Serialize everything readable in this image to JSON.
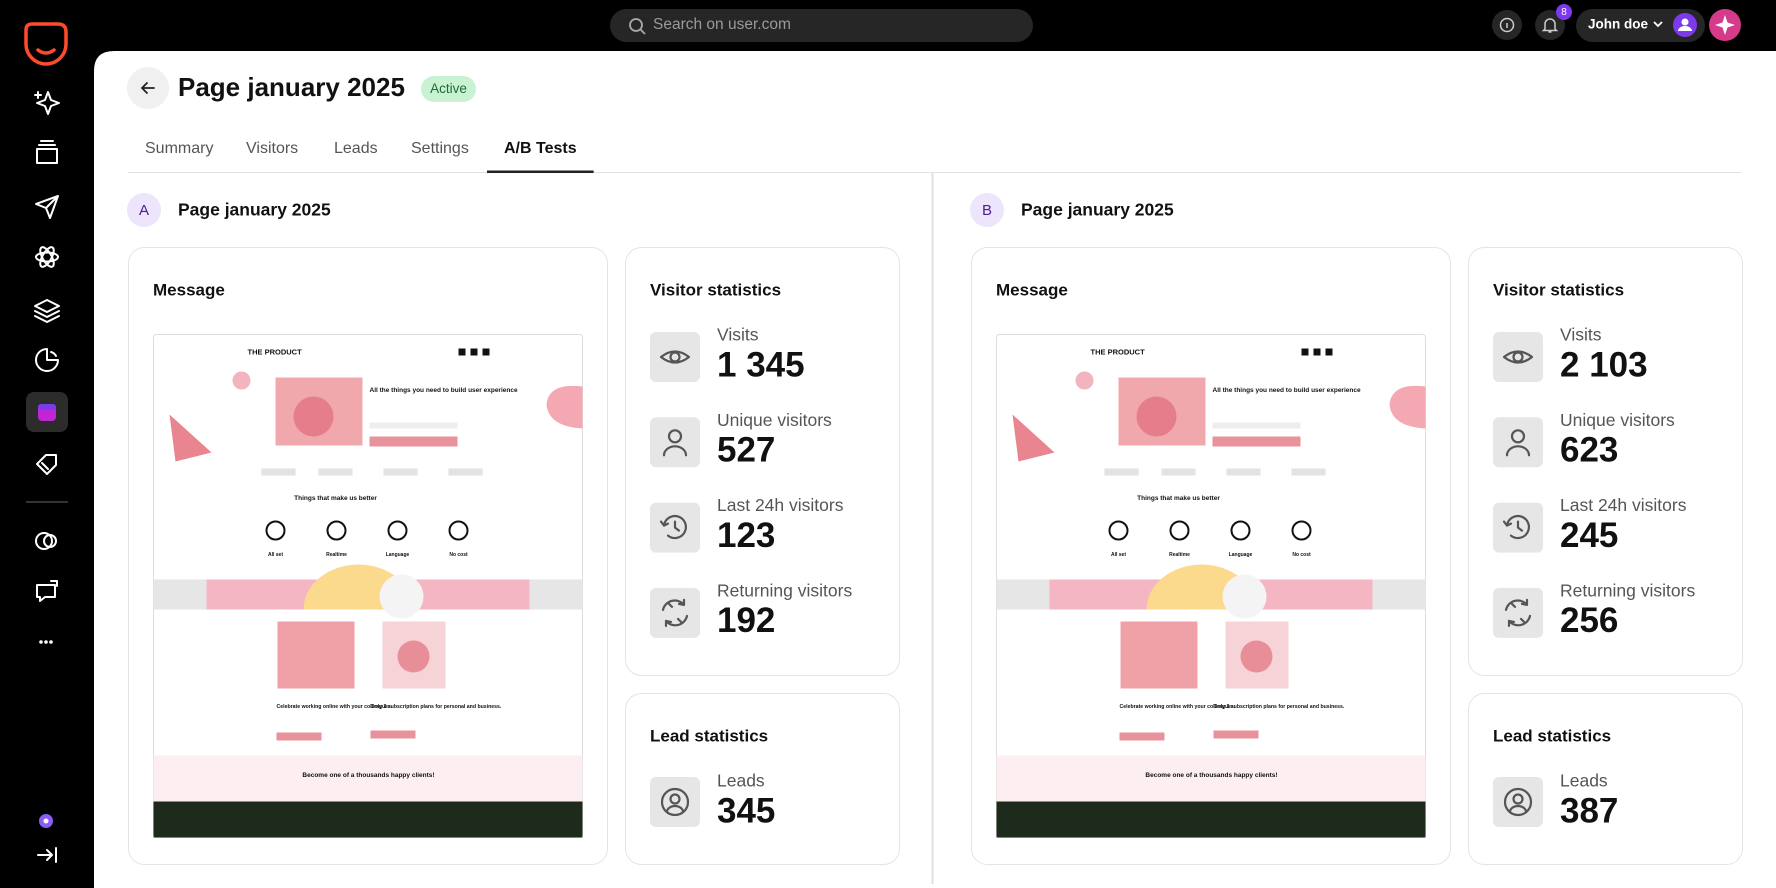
{
  "topbar": {
    "search_placeholder": "Search on user.com",
    "notifications": 8,
    "user": "John doe"
  },
  "page": {
    "title": "Page january 2025",
    "status": "Active"
  },
  "tabs": [
    {
      "label": "Summary",
      "active": false
    },
    {
      "label": "Visitors",
      "active": false
    },
    {
      "label": "Leads",
      "active": false
    },
    {
      "label": "Settings",
      "active": false
    },
    {
      "label": "A/B Tests",
      "active": true
    }
  ],
  "preview": {
    "brand": "THE PRODUCT",
    "hero": "All the things you need to build user experience",
    "features_title": "Things that make us better",
    "features": [
      "All set",
      "Realtime",
      "Language",
      "No cost"
    ],
    "col1": "Celebrate working online with your colleagues.",
    "col2": "Only 2 subscription plans for personal and business.",
    "cta": "Become one of a thousands happy clients!"
  },
  "variants": [
    {
      "letter": "A",
      "name": "Page january 2025",
      "message_title": "Message",
      "visitor_title": "Visitor statistics",
      "stats": [
        {
          "label": "Visits",
          "value": {
            "value": 1345,
            "label": "1 345"
          }
        },
        {
          "label": "Unique visitors",
          "value": 527
        },
        {
          "label": "Last 24h visitors",
          "value": 123
        },
        {
          "label": "Returning visitors",
          "value": 192
        }
      ],
      "lead_title": "Lead statistics",
      "leads": {
        "label": "Leads",
        "value": 345
      }
    },
    {
      "letter": "B",
      "name": "Page january 2025",
      "message_title": "Message",
      "visitor_title": "Visitor statistics",
      "stats": [
        {
          "label": "Visits",
          "value": {
            "value": 2103,
            "label": "2 103"
          }
        },
        {
          "label": "Unique visitors",
          "value": 623
        },
        {
          "label": "Last 24h visitors",
          "value": 245
        },
        {
          "label": "Returning visitors",
          "value": 256
        }
      ],
      "lead_title": "Lead statistics",
      "leads": {
        "label": "Leads",
        "value": 387
      }
    }
  ]
}
